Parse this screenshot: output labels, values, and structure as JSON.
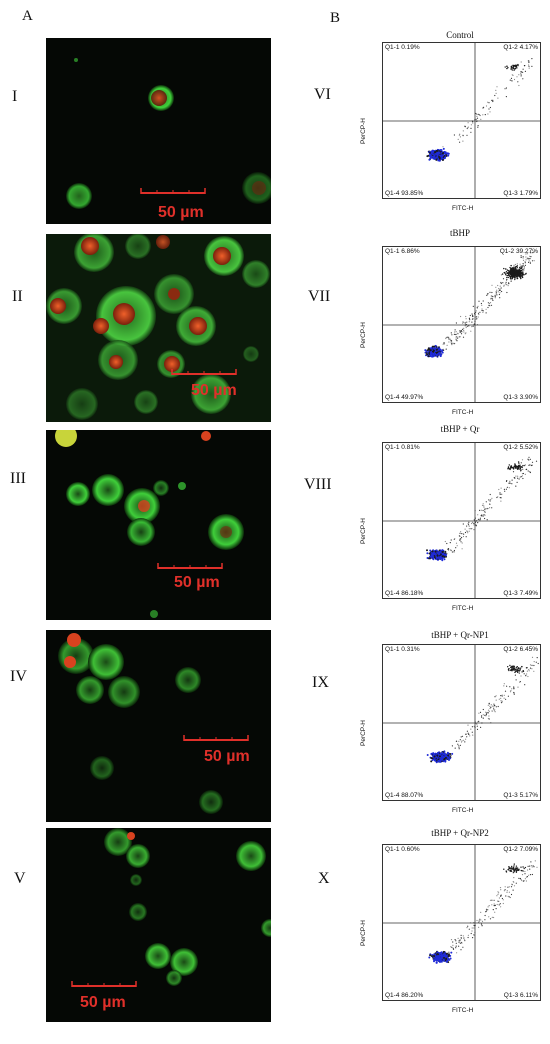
{
  "panel_labels": {
    "a": "A",
    "b": "B"
  },
  "micrographs": [
    {
      "roman": "I",
      "scale_text": "50 µm"
    },
    {
      "roman": "II",
      "scale_text": "50 µm"
    },
    {
      "roman": "III",
      "scale_text": "50 µm"
    },
    {
      "roman": "IV",
      "scale_text": "50 µm"
    },
    {
      "roman": "V",
      "scale_text": "50 µm"
    }
  ],
  "flow_plots": [
    {
      "roman": "VI",
      "title": "Control",
      "q1_1": "Q1-1 0.19%",
      "q1_2": "Q1-2 4.17%",
      "q1_3": "Q1-3 1.79%",
      "q1_4": "Q1-4 93.85%"
    },
    {
      "roman": "VII",
      "title": "tBHP",
      "q1_1": "Q1-1 6.86%",
      "q1_2": "Q1-2 39.27%",
      "q1_3": "Q1-3 3.90%",
      "q1_4": "Q1-4 49.97%"
    },
    {
      "roman": "VIII",
      "title": "tBHP + Qr",
      "q1_1": "Q1-1 0.81%",
      "q1_2": "Q1-2 5.52%",
      "q1_3": "Q1-3 7.49%",
      "q1_4": "Q1-4 86.18%"
    },
    {
      "roman": "IX",
      "title": "tBHP + Qr-NP1",
      "q1_1": "Q1-1 0.31%",
      "q1_2": "Q1-2 6.45%",
      "q1_3": "Q1-3 5.17%",
      "q1_4": "Q1-4 88.07%"
    },
    {
      "roman": "X",
      "title": "tBHP + Qr-NP2",
      "q1_1": "Q1-1 0.60%",
      "q1_2": "Q1-2 7.09%",
      "q1_3": "Q1-3 6.11%",
      "q1_4": "Q1-4 86.20%"
    }
  ],
  "axes": {
    "x_label": "FITC-H",
    "y_label": "PerCP-H"
  },
  "colors": {
    "scale_bar": "#e0302a",
    "gfp": "#3fcf3a",
    "nucleus": "#d8421f",
    "density": "#1f2bd8"
  }
}
